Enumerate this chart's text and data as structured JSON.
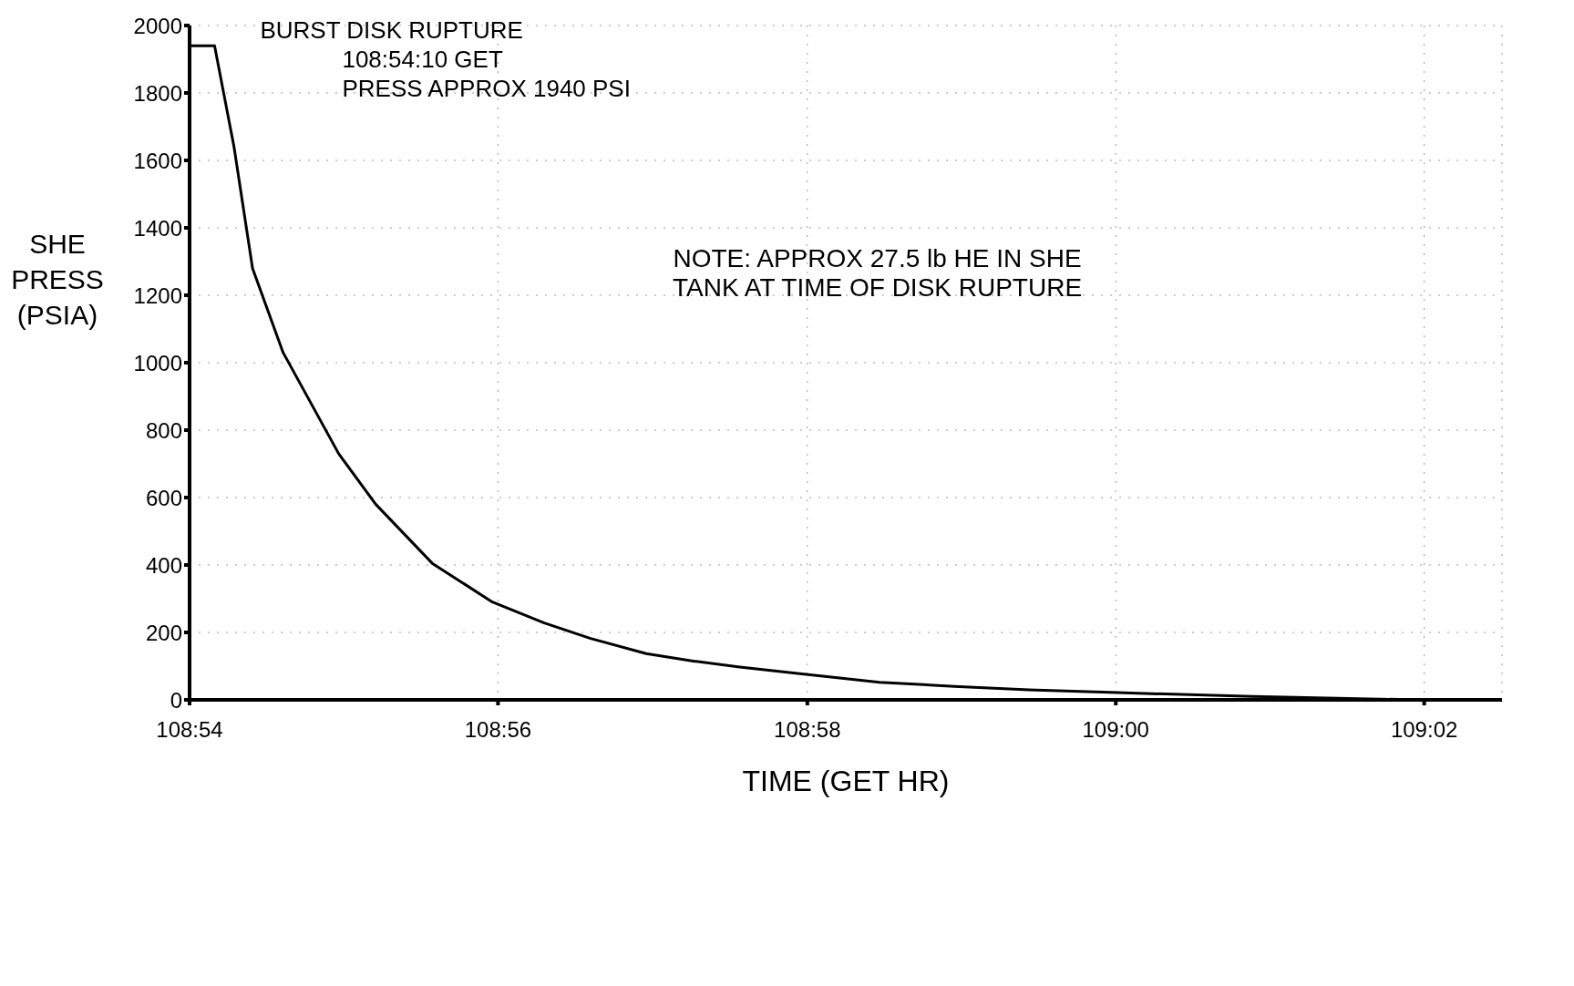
{
  "chart_data": {
    "type": "line",
    "xlabel": "TIME (GET HR)",
    "ylabel": "SHE PRESS (PSIA)",
    "x": [
      108.9,
      108.9027,
      108.9048,
      108.9068,
      108.9101,
      108.9131,
      108.9161,
      108.9201,
      108.9262,
      108.9327,
      108.9383,
      108.9433,
      108.9493,
      108.9544,
      108.9594,
      108.9661,
      108.9745,
      108.9826,
      108.9906,
      108.9994,
      109.0148,
      109.0327,
      109.041
    ],
    "series": [
      {
        "color": "#000000",
        "values": [
          1940,
          1940,
          1640,
          1280,
          1030,
          880,
          730,
          580,
          405,
          290,
          228,
          182,
          137,
          115,
          97,
          77,
          52,
          40,
          30,
          22,
          10,
          0,
          0
        ]
      }
    ],
    "xlim": [
      108.9,
      109.0417
    ],
    "xticks": [
      {
        "value": 108.9,
        "label": "108:54"
      },
      {
        "value": 108.9333,
        "label": "108:56"
      },
      {
        "value": 108.9667,
        "label": "108:58"
      },
      {
        "value": 109,
        "label": "109:00"
      },
      {
        "value": 109.0333,
        "label": "109:02"
      }
    ],
    "ylim": [
      0,
      2000
    ],
    "yticks": [
      0,
      200,
      400,
      600,
      800,
      1000,
      1200,
      1400,
      1600,
      1800,
      2000
    ],
    "grid": true,
    "legend": false,
    "marker": "none",
    "line_style": "solid",
    "annotations": [
      {
        "text": "BURST DISK RUPTURE\n108:54:10 GET\nPRESS APPROX 1940 PSI",
        "x": 108.9027,
        "y": 1940
      },
      "NOTE: APPROX 27.5 lb HE IN SHE\nTANK AT TIME OF DISK RUPTURE"
    ]
  }
}
